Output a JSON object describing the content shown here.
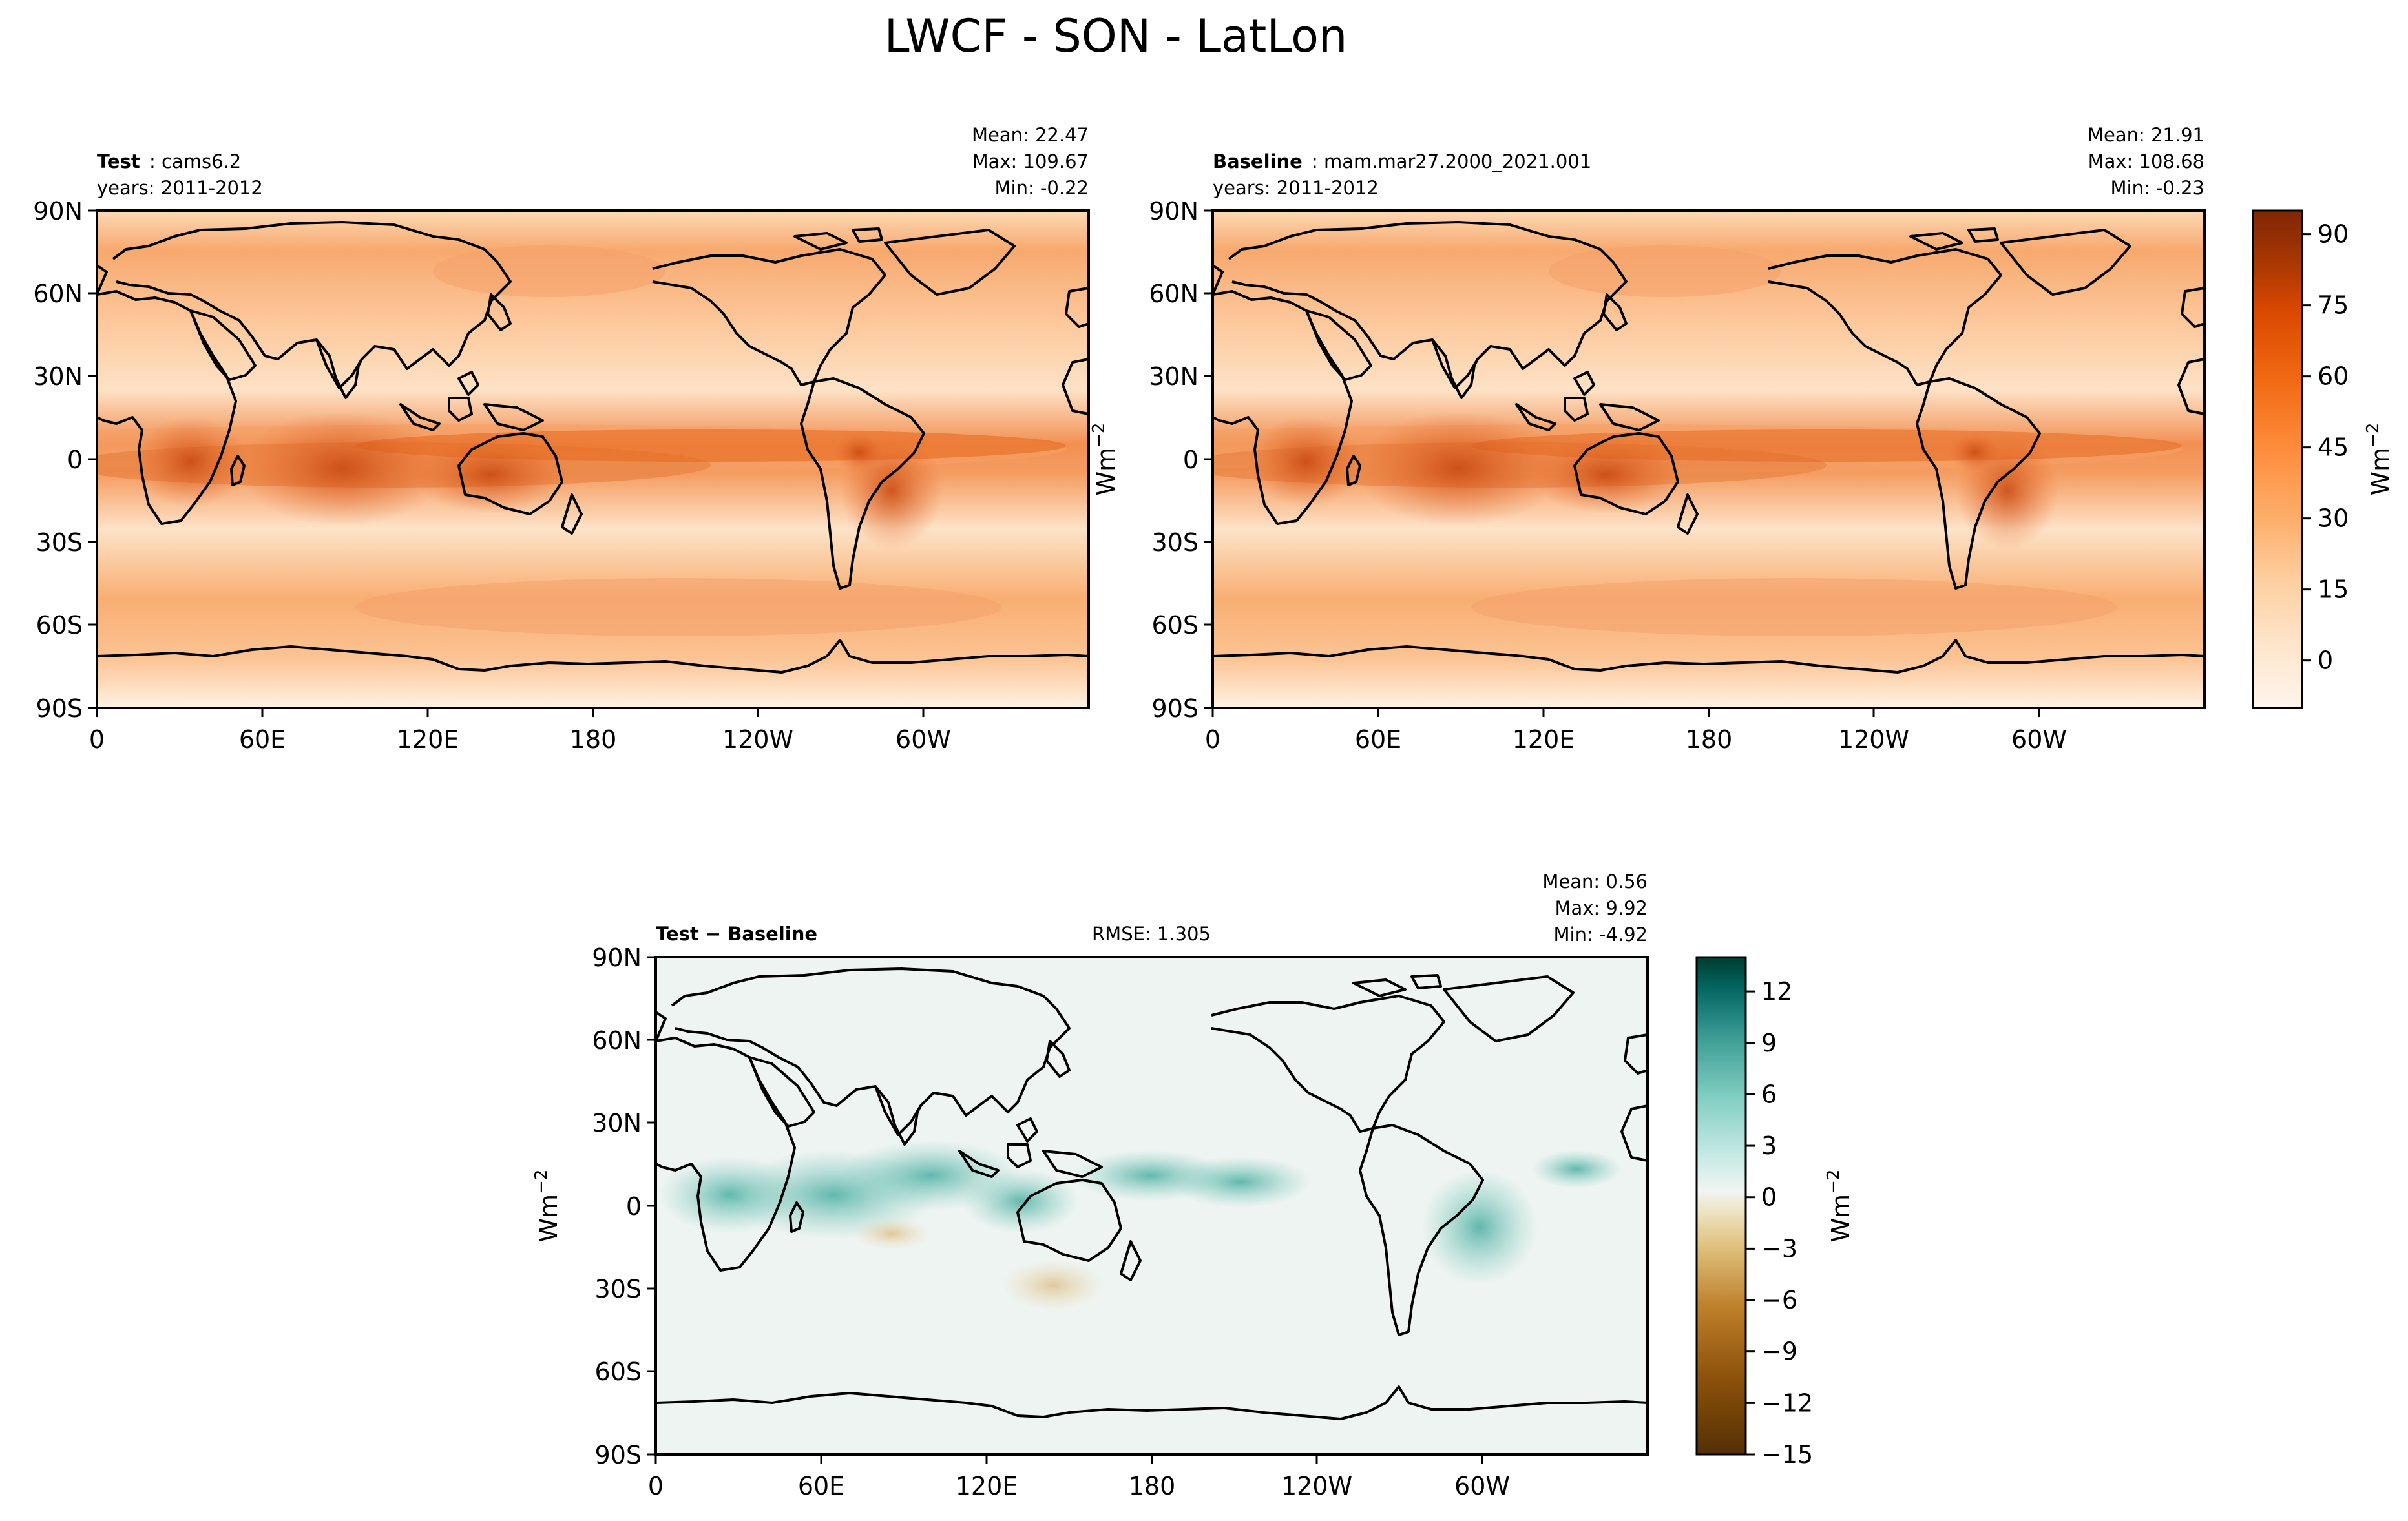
{
  "chart_data": {
    "type": "heatmap",
    "title": "LWCF - SON - LatLon",
    "shared": {
      "lat_ticks": [
        "90N",
        "60N",
        "30N",
        "0",
        "30S",
        "60S",
        "90S"
      ],
      "lon_ticks": [
        "0",
        "60E",
        "120E",
        "180",
        "120W",
        "60W"
      ],
      "units_label": "Wm",
      "units_exponent": "−2"
    },
    "panels": [
      {
        "id": "test",
        "label_bold": "Test",
        "label_rest": ": cams6.2",
        "years": "years: 2011-2012",
        "stats": [
          "Mean: 22.47",
          "Max: 109.67",
          "Min: -0.22"
        ],
        "colormap": "Oranges",
        "vrange": [
          -10,
          95
        ]
      },
      {
        "id": "baseline",
        "label_bold": "Baseline",
        "label_rest": ": mam.mar27.2000_2021.001",
        "years": "years: 2011-2012",
        "stats": [
          "Mean: 21.91",
          "Max: 108.68",
          "Min: -0.23"
        ],
        "colormap": "Oranges",
        "vrange": [
          -10,
          95
        ]
      },
      {
        "id": "diff",
        "label_bold": "Test − Baseline",
        "rmse": "RMSE: 1.305",
        "stats": [
          "Mean:  0.56",
          "Max:  9.92",
          "Min: -4.92"
        ],
        "colormap": "BrBG",
        "vrange": [
          -15,
          14
        ]
      }
    ],
    "colorbars": [
      {
        "id": "cb-main",
        "ticks": [
          0,
          15,
          30,
          45,
          60,
          75,
          90
        ],
        "tick_labels": [
          "0",
          "15",
          "30",
          "45",
          "60",
          "75",
          "90"
        ],
        "range": [
          -10,
          95
        ],
        "colormap": "Oranges"
      },
      {
        "id": "cb-diff",
        "ticks": [
          12,
          9,
          6,
          3,
          0,
          -3,
          -6,
          -9,
          -12,
          -15
        ],
        "tick_labels": [
          "12",
          "9",
          "6",
          "3",
          "0",
          "−3",
          "−6",
          "−9",
          "−12",
          "−15"
        ],
        "range": [
          -15,
          14
        ],
        "colormap": "BrBG"
      }
    ],
    "colors": {
      "oranges_low": "#fff5eb",
      "oranges_high": "#7f2704",
      "brbg_low": "#543005",
      "brbg_mid": "#f0f4f2",
      "brbg_high": "#003c30"
    }
  }
}
